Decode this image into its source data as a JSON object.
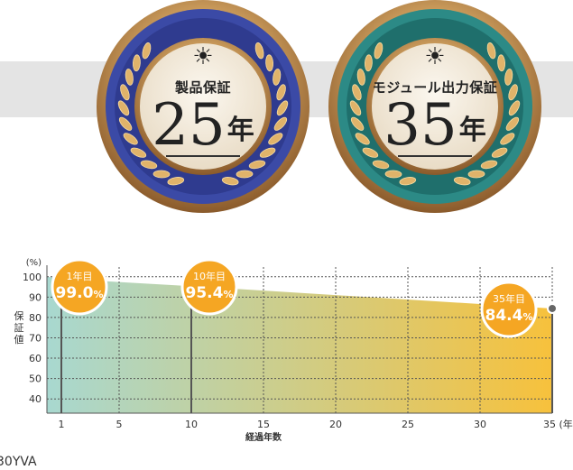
{
  "medals": [
    {
      "label": "製品保証",
      "number": "25",
      "unit": "年",
      "theme": "blue",
      "colors": {
        "outer": "#3b4aa6",
        "inner": "#2f3b8f"
      }
    },
    {
      "label": "モジュール出力保証",
      "number": "35",
      "unit": "年",
      "theme": "teal",
      "colors": {
        "outer": "#2c8a86",
        "inner": "#1f6f6c"
      }
    }
  ],
  "sun_glyph": "☀",
  "chart_data": {
    "type": "area",
    "y_unit_label": "(%)",
    "ylabel": "保証値",
    "xlabel": "経過年数",
    "x_end_label": "35 (年",
    "ylim": [
      33,
      103
    ],
    "xlim": [
      0,
      35
    ],
    "yticks": [
      40,
      50,
      60,
      70,
      80,
      90,
      100
    ],
    "xticks": [
      1,
      5,
      10,
      15,
      20,
      25,
      30
    ],
    "points": [
      {
        "x": 0,
        "y": 100
      },
      {
        "x": 1,
        "y": 99.0
      },
      {
        "x": 10,
        "y": 95.4
      },
      {
        "x": 35,
        "y": 84.4
      }
    ],
    "markers": [
      {
        "x": 1,
        "y": 99.0
      },
      {
        "x": 10,
        "y": 95.4
      },
      {
        "x": 35,
        "y": 84.4
      }
    ],
    "callouts": [
      {
        "label": "1年目",
        "value": "99.0",
        "unit": "%",
        "x": 1
      },
      {
        "label": "10年目",
        "value": "95.4",
        "unit": "%",
        "x": 10
      },
      {
        "label": "35年目",
        "value": "84.4",
        "unit": "%",
        "x": 35
      }
    ],
    "colors": {
      "fill_start": "#a8d8d0",
      "fill_end": "#f7c13c",
      "callout": "#f5a623",
      "grid": "#555555"
    }
  },
  "partial_text": "30YVA"
}
